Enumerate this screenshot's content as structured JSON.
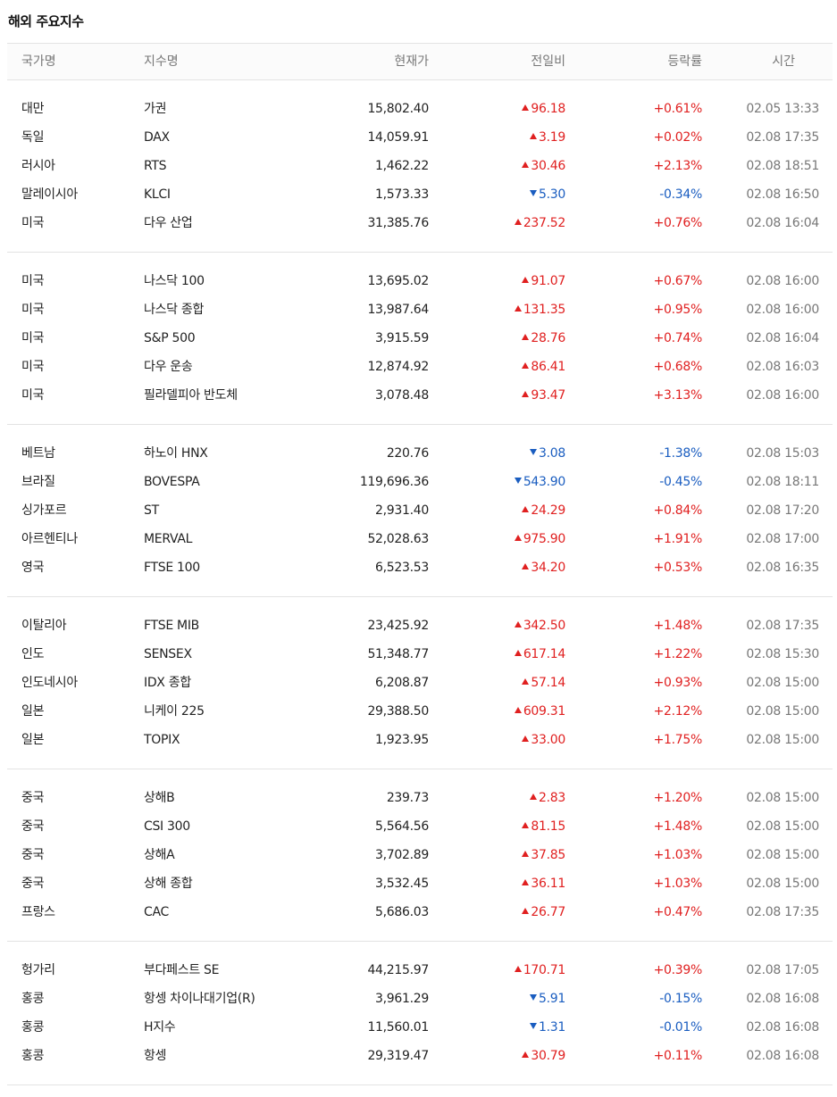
{
  "title": "해외 주요지수",
  "headers": {
    "country": "국가명",
    "index": "지수명",
    "price": "현재가",
    "change": "전일비",
    "rate": "등락률",
    "time": "시간"
  },
  "colors": {
    "up": "#e02020",
    "down": "#1a5dc0"
  },
  "groups": [
    [
      {
        "country": "대만",
        "index": "가권",
        "price": "15,802.40",
        "dir": "up",
        "change": "96.18",
        "rate": "+0.61%",
        "time": "02.05 13:33"
      },
      {
        "country": "독일",
        "index": "DAX",
        "price": "14,059.91",
        "dir": "up",
        "change": "3.19",
        "rate": "+0.02%",
        "time": "02.08 17:35"
      },
      {
        "country": "러시아",
        "index": "RTS",
        "price": "1,462.22",
        "dir": "up",
        "change": "30.46",
        "rate": "+2.13%",
        "time": "02.08 18:51"
      },
      {
        "country": "말레이시아",
        "index": "KLCI",
        "price": "1,573.33",
        "dir": "down",
        "change": "5.30",
        "rate": "-0.34%",
        "time": "02.08 16:50"
      },
      {
        "country": "미국",
        "index": "다우 산업",
        "price": "31,385.76",
        "dir": "up",
        "change": "237.52",
        "rate": "+0.76%",
        "time": "02.08 16:04"
      }
    ],
    [
      {
        "country": "미국",
        "index": "나스닥 100",
        "price": "13,695.02",
        "dir": "up",
        "change": "91.07",
        "rate": "+0.67%",
        "time": "02.08 16:00"
      },
      {
        "country": "미국",
        "index": "나스닥 종합",
        "price": "13,987.64",
        "dir": "up",
        "change": "131.35",
        "rate": "+0.95%",
        "time": "02.08 16:00"
      },
      {
        "country": "미국",
        "index": "S&P 500",
        "price": "3,915.59",
        "dir": "up",
        "change": "28.76",
        "rate": "+0.74%",
        "time": "02.08 16:04"
      },
      {
        "country": "미국",
        "index": "다우 운송",
        "price": "12,874.92",
        "dir": "up",
        "change": "86.41",
        "rate": "+0.68%",
        "time": "02.08 16:03"
      },
      {
        "country": "미국",
        "index": "필라델피아 반도체",
        "price": "3,078.48",
        "dir": "up",
        "change": "93.47",
        "rate": "+3.13%",
        "time": "02.08 16:00"
      }
    ],
    [
      {
        "country": "베트남",
        "index": "하노이 HNX",
        "price": "220.76",
        "dir": "down",
        "change": "3.08",
        "rate": "-1.38%",
        "time": "02.08 15:03"
      },
      {
        "country": "브라질",
        "index": "BOVESPA",
        "price": "119,696.36",
        "dir": "down",
        "change": "543.90",
        "rate": "-0.45%",
        "time": "02.08 18:11"
      },
      {
        "country": "싱가포르",
        "index": "ST",
        "price": "2,931.40",
        "dir": "up",
        "change": "24.29",
        "rate": "+0.84%",
        "time": "02.08 17:20"
      },
      {
        "country": "아르헨티나",
        "index": "MERVAL",
        "price": "52,028.63",
        "dir": "up",
        "change": "975.90",
        "rate": "+1.91%",
        "time": "02.08 17:00"
      },
      {
        "country": "영국",
        "index": "FTSE 100",
        "price": "6,523.53",
        "dir": "up",
        "change": "34.20",
        "rate": "+0.53%",
        "time": "02.08 16:35"
      }
    ],
    [
      {
        "country": "이탈리아",
        "index": "FTSE MIB",
        "price": "23,425.92",
        "dir": "up",
        "change": "342.50",
        "rate": "+1.48%",
        "time": "02.08 17:35"
      },
      {
        "country": "인도",
        "index": "SENSEX",
        "price": "51,348.77",
        "dir": "up",
        "change": "617.14",
        "rate": "+1.22%",
        "time": "02.08 15:30"
      },
      {
        "country": "인도네시아",
        "index": "IDX 종합",
        "price": "6,208.87",
        "dir": "up",
        "change": "57.14",
        "rate": "+0.93%",
        "time": "02.08 15:00"
      },
      {
        "country": "일본",
        "index": "니케이 225",
        "price": "29,388.50",
        "dir": "up",
        "change": "609.31",
        "rate": "+2.12%",
        "time": "02.08 15:00"
      },
      {
        "country": "일본",
        "index": "TOPIX",
        "price": "1,923.95",
        "dir": "up",
        "change": "33.00",
        "rate": "+1.75%",
        "time": "02.08 15:00"
      }
    ],
    [
      {
        "country": "중국",
        "index": "상해B",
        "price": "239.73",
        "dir": "up",
        "change": "2.83",
        "rate": "+1.20%",
        "time": "02.08 15:00"
      },
      {
        "country": "중국",
        "index": "CSI 300",
        "price": "5,564.56",
        "dir": "up",
        "change": "81.15",
        "rate": "+1.48%",
        "time": "02.08 15:00"
      },
      {
        "country": "중국",
        "index": "상해A",
        "price": "3,702.89",
        "dir": "up",
        "change": "37.85",
        "rate": "+1.03%",
        "time": "02.08 15:00"
      },
      {
        "country": "중국",
        "index": "상해 종합",
        "price": "3,532.45",
        "dir": "up",
        "change": "36.11",
        "rate": "+1.03%",
        "time": "02.08 15:00"
      },
      {
        "country": "프랑스",
        "index": "CAC",
        "price": "5,686.03",
        "dir": "up",
        "change": "26.77",
        "rate": "+0.47%",
        "time": "02.08 17:35"
      }
    ],
    [
      {
        "country": "헝가리",
        "index": "부다페스트 SE",
        "price": "44,215.97",
        "dir": "up",
        "change": "170.71",
        "rate": "+0.39%",
        "time": "02.08 17:05"
      },
      {
        "country": "홍콩",
        "index": "항셍 차이나대기업(R)",
        "price": "3,961.29",
        "dir": "down",
        "change": "5.91",
        "rate": "-0.15%",
        "time": "02.08 16:08"
      },
      {
        "country": "홍콩",
        "index": "H지수",
        "price": "11,560.01",
        "dir": "down",
        "change": "1.31",
        "rate": "-0.01%",
        "time": "02.08 16:08"
      },
      {
        "country": "홍콩",
        "index": "항셍",
        "price": "29,319.47",
        "dir": "up",
        "change": "30.79",
        "rate": "+0.11%",
        "time": "02.08 16:08"
      }
    ]
  ]
}
